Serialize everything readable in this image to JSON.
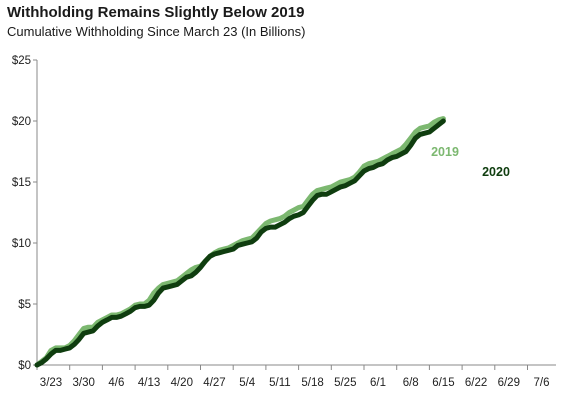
{
  "title": "Withholding Remains Slightly Below 2019",
  "subtitle": "Cumulative Withholding Since March 23 (In Billions)",
  "chart_data": {
    "type": "line",
    "xlabel": "",
    "ylabel": "",
    "x_ticks": [
      "3/23",
      "3/30",
      "4/6",
      "4/13",
      "4/20",
      "4/27",
      "5/4",
      "5/11",
      "5/18",
      "5/25",
      "6/1",
      "6/8",
      "6/15",
      "6/22",
      "6/29",
      "7/6"
    ],
    "y_ticks": [
      "$0",
      "$5",
      "$10",
      "$15",
      "$20",
      "$25"
    ],
    "ylim": [
      0,
      25
    ],
    "x_range_days": [
      0,
      108
    ],
    "grid": false,
    "legend": "inline labels at right",
    "series": [
      {
        "name": "2019",
        "color": "#7cb870",
        "points": [
          [
            0,
            0
          ],
          [
            1,
            0.3
          ],
          [
            2,
            0.6
          ],
          [
            3,
            1.2
          ],
          [
            4,
            1.4
          ],
          [
            5,
            1.4
          ],
          [
            6,
            1.4
          ],
          [
            7,
            1.6
          ],
          [
            8,
            2.0
          ],
          [
            9,
            2.5
          ],
          [
            10,
            3.0
          ],
          [
            11,
            3.1
          ],
          [
            12,
            3.1
          ],
          [
            13,
            3.5
          ],
          [
            14,
            3.7
          ],
          [
            15,
            3.9
          ],
          [
            16,
            4.1
          ],
          [
            17,
            4.1
          ],
          [
            18,
            4.2
          ],
          [
            19,
            4.4
          ],
          [
            20,
            4.6
          ],
          [
            21,
            4.9
          ],
          [
            22,
            5.0
          ],
          [
            23,
            5.0
          ],
          [
            24,
            5.3
          ],
          [
            25,
            5.9
          ],
          [
            26,
            6.3
          ],
          [
            27,
            6.6
          ],
          [
            28,
            6.7
          ],
          [
            29,
            6.8
          ],
          [
            30,
            6.9
          ],
          [
            31,
            7.2
          ],
          [
            32,
            7.5
          ],
          [
            33,
            7.8
          ],
          [
            34,
            8.0
          ],
          [
            35,
            8.1
          ],
          [
            36,
            8.5
          ],
          [
            37,
            8.9
          ],
          [
            38,
            9.2
          ],
          [
            39,
            9.4
          ],
          [
            40,
            9.5
          ],
          [
            41,
            9.6
          ],
          [
            42,
            9.8
          ],
          [
            43,
            10.0
          ],
          [
            44,
            10.2
          ],
          [
            45,
            10.3
          ],
          [
            46,
            10.4
          ],
          [
            47,
            10.8
          ],
          [
            48,
            11.2
          ],
          [
            49,
            11.6
          ],
          [
            50,
            11.8
          ],
          [
            51,
            11.9
          ],
          [
            52,
            12.0
          ],
          [
            53,
            12.2
          ],
          [
            54,
            12.5
          ],
          [
            55,
            12.7
          ],
          [
            56,
            12.9
          ],
          [
            57,
            13.0
          ],
          [
            58,
            13.5
          ],
          [
            59,
            14.0
          ],
          [
            60,
            14.3
          ],
          [
            61,
            14.4
          ],
          [
            62,
            14.5
          ],
          [
            63,
            14.6
          ],
          [
            64,
            14.8
          ],
          [
            65,
            15.0
          ],
          [
            66,
            15.1
          ],
          [
            67,
            15.2
          ],
          [
            68,
            15.4
          ],
          [
            69,
            15.8
          ],
          [
            70,
            16.3
          ],
          [
            71,
            16.5
          ],
          [
            72,
            16.6
          ],
          [
            73,
            16.7
          ],
          [
            74,
            16.9
          ],
          [
            75,
            17.1
          ],
          [
            76,
            17.3
          ],
          [
            77,
            17.5
          ],
          [
            78,
            17.7
          ],
          [
            79,
            18.1
          ],
          [
            80,
            18.6
          ],
          [
            81,
            19.1
          ],
          [
            82,
            19.4
          ],
          [
            83,
            19.5
          ],
          [
            84,
            19.6
          ],
          [
            85,
            19.9
          ],
          [
            86,
            20.1
          ],
          [
            87,
            20.2
          ]
        ]
      },
      {
        "name": "2020",
        "color": "#0f3d0f",
        "points": [
          [
            0,
            0
          ],
          [
            1,
            0.2
          ],
          [
            2,
            0.5
          ],
          [
            3,
            0.9
          ],
          [
            4,
            1.2
          ],
          [
            5,
            1.2
          ],
          [
            6,
            1.3
          ],
          [
            7,
            1.4
          ],
          [
            8,
            1.7
          ],
          [
            9,
            2.1
          ],
          [
            10,
            2.6
          ],
          [
            11,
            2.7
          ],
          [
            12,
            2.8
          ],
          [
            13,
            3.2
          ],
          [
            14,
            3.5
          ],
          [
            15,
            3.7
          ],
          [
            16,
            3.9
          ],
          [
            17,
            3.9
          ],
          [
            18,
            4.0
          ],
          [
            19,
            4.2
          ],
          [
            20,
            4.4
          ],
          [
            21,
            4.7
          ],
          [
            22,
            4.8
          ],
          [
            23,
            4.8
          ],
          [
            24,
            4.9
          ],
          [
            25,
            5.3
          ],
          [
            26,
            5.9
          ],
          [
            27,
            6.3
          ],
          [
            28,
            6.4
          ],
          [
            29,
            6.5
          ],
          [
            30,
            6.6
          ],
          [
            31,
            6.9
          ],
          [
            32,
            7.2
          ],
          [
            33,
            7.3
          ],
          [
            34,
            7.6
          ],
          [
            35,
            8.0
          ],
          [
            36,
            8.5
          ],
          [
            37,
            8.9
          ],
          [
            38,
            9.1
          ],
          [
            39,
            9.2
          ],
          [
            40,
            9.3
          ],
          [
            41,
            9.4
          ],
          [
            42,
            9.5
          ],
          [
            43,
            9.8
          ],
          [
            44,
            9.9
          ],
          [
            45,
            10.0
          ],
          [
            46,
            10.1
          ],
          [
            47,
            10.4
          ],
          [
            48,
            10.9
          ],
          [
            49,
            11.2
          ],
          [
            50,
            11.3
          ],
          [
            51,
            11.3
          ],
          [
            52,
            11.5
          ],
          [
            53,
            11.7
          ],
          [
            54,
            12.0
          ],
          [
            55,
            12.2
          ],
          [
            56,
            12.3
          ],
          [
            57,
            12.5
          ],
          [
            58,
            13.0
          ],
          [
            59,
            13.5
          ],
          [
            60,
            13.9
          ],
          [
            61,
            14.0
          ],
          [
            62,
            14.0
          ],
          [
            63,
            14.2
          ],
          [
            64,
            14.4
          ],
          [
            65,
            14.6
          ],
          [
            66,
            14.7
          ],
          [
            67,
            14.9
          ],
          [
            68,
            15.1
          ],
          [
            69,
            15.5
          ],
          [
            70,
            15.9
          ],
          [
            71,
            16.1
          ],
          [
            72,
            16.2
          ],
          [
            73,
            16.4
          ],
          [
            74,
            16.5
          ],
          [
            75,
            16.8
          ],
          [
            76,
            17.0
          ],
          [
            77,
            17.1
          ],
          [
            78,
            17.3
          ],
          [
            79,
            17.5
          ],
          [
            80,
            18.0
          ],
          [
            81,
            18.6
          ],
          [
            82,
            18.9
          ],
          [
            83,
            19.0
          ],
          [
            84,
            19.1
          ],
          [
            85,
            19.4
          ],
          [
            86,
            19.7
          ],
          [
            87,
            20.0
          ]
        ]
      }
    ]
  }
}
